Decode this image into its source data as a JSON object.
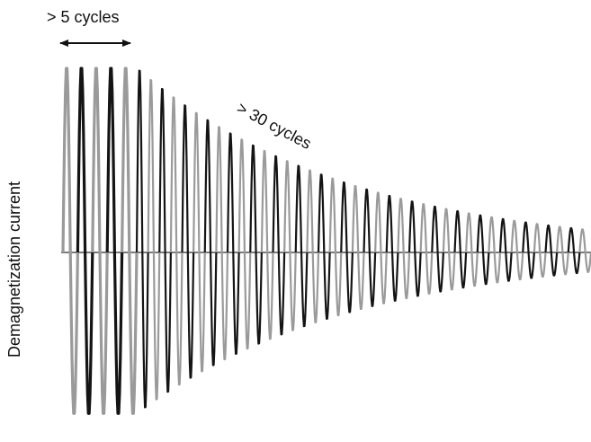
{
  "labels": {
    "hold_period": "> 5 cycles",
    "decay_period": "> 30 cycles",
    "y_axis": "Demagnetization  current"
  },
  "waveform": {
    "hold_cycles": 5,
    "total_cycles": 45,
    "decay_ratio": 0.12,
    "colors": {
      "dark": "#141414",
      "gray": "#9a9a9a",
      "axis": "#2a2a2a"
    }
  },
  "arrow": {
    "direction": "double-headed",
    "color": "#111111"
  }
}
